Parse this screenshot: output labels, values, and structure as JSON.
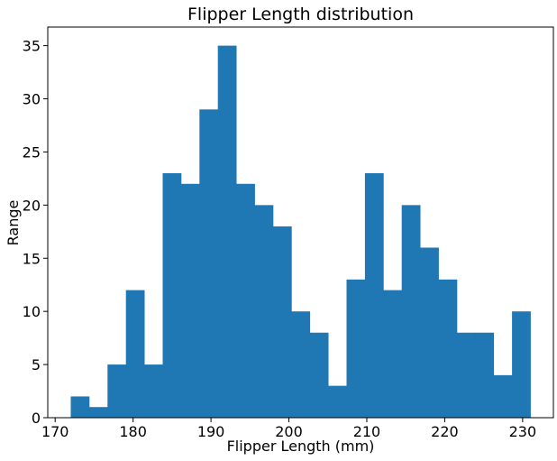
{
  "chart_data": {
    "type": "bar",
    "title": "Flipper Length distribution",
    "xlabel": "Flipper Length (mm)",
    "ylabel": "Range",
    "bins": [
      {
        "x0": 172.0,
        "x1": 174.36,
        "count": 2
      },
      {
        "x0": 174.36,
        "x1": 176.72,
        "count": 1
      },
      {
        "x0": 176.72,
        "x1": 179.08,
        "count": 5
      },
      {
        "x0": 179.08,
        "x1": 181.44,
        "count": 12
      },
      {
        "x0": 181.44,
        "x1": 183.8,
        "count": 5
      },
      {
        "x0": 183.8,
        "x1": 186.16,
        "count": 23
      },
      {
        "x0": 186.16,
        "x1": 188.52,
        "count": 22
      },
      {
        "x0": 188.52,
        "x1": 190.88,
        "count": 29
      },
      {
        "x0": 190.88,
        "x1": 193.24,
        "count": 35
      },
      {
        "x0": 193.24,
        "x1": 195.6,
        "count": 22
      },
      {
        "x0": 195.6,
        "x1": 197.96,
        "count": 20
      },
      {
        "x0": 197.96,
        "x1": 200.32,
        "count": 18
      },
      {
        "x0": 200.32,
        "x1": 202.68,
        "count": 10
      },
      {
        "x0": 202.68,
        "x1": 205.04,
        "count": 8
      },
      {
        "x0": 205.04,
        "x1": 207.4,
        "count": 3
      },
      {
        "x0": 207.4,
        "x1": 209.76,
        "count": 13
      },
      {
        "x0": 209.76,
        "x1": 212.12,
        "count": 23
      },
      {
        "x0": 212.12,
        "x1": 214.48,
        "count": 12
      },
      {
        "x0": 214.48,
        "x1": 216.84,
        "count": 20
      },
      {
        "x0": 216.84,
        "x1": 219.2,
        "count": 16
      },
      {
        "x0": 219.2,
        "x1": 221.56,
        "count": 13
      },
      {
        "x0": 221.56,
        "x1": 223.92,
        "count": 8
      },
      {
        "x0": 223.92,
        "x1": 226.28,
        "count": 8
      },
      {
        "x0": 226.28,
        "x1": 228.64,
        "count": 4
      },
      {
        "x0": 228.64,
        "x1": 231.0,
        "count": 10
      }
    ],
    "xlim": [
      169.05,
      233.95
    ],
    "ylim": [
      0,
      36.75
    ],
    "xticks": [
      170,
      180,
      190,
      200,
      210,
      220,
      230
    ],
    "yticks": [
      0,
      5,
      10,
      15,
      20,
      25,
      30,
      35
    ],
    "bar_color": "#1f77b4",
    "grid": false,
    "legend": "none"
  }
}
